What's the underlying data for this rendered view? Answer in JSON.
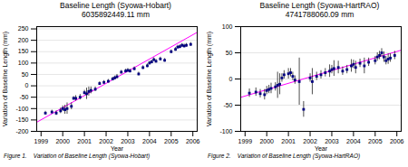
{
  "chart_data": [
    {
      "type": "scatter",
      "title": "Baseline Length (Syowa-Hobart)",
      "subtitle": "6035892449.11 mm",
      "caption": "Figure 1.    Variation of Baseline Length (Syowa-Hobart)",
      "xlabel": "Year",
      "ylabel": "Variation of Baseline Length (mm)",
      "x": [
        1999.2,
        1999.5,
        1999.7,
        1999.9,
        2000.0,
        2000.1,
        2000.2,
        2000.4,
        2000.5,
        2000.6,
        2000.8,
        2001.0,
        2001.1,
        2001.2,
        2001.3,
        2001.5,
        2001.7,
        2001.9,
        2002.1,
        2002.3,
        2002.4,
        2002.5,
        2002.7,
        2002.9,
        2003.0,
        2003.1,
        2003.3,
        2003.5,
        2003.7,
        2003.9,
        2004.0,
        2004.1,
        2004.2,
        2004.3,
        2004.5,
        2004.7,
        2005.0,
        2005.2,
        2005.3,
        2005.4,
        2005.5,
        2005.6,
        2005.7,
        2005.9
      ],
      "values": [
        -120,
        -115,
        -120,
        -110,
        -100,
        -105,
        -100,
        -90,
        -55,
        -55,
        -50,
        -30,
        -35,
        -25,
        -20,
        -15,
        10,
        15,
        20,
        30,
        35,
        40,
        60,
        65,
        68,
        65,
        75,
        52,
        80,
        88,
        100,
        105,
        115,
        108,
        118,
        112,
        150,
        160,
        170,
        172,
        178,
        175,
        178,
        182
      ],
      "yerr": [
        8,
        8,
        10,
        12,
        12,
        20,
        25,
        15,
        8,
        12,
        12,
        10,
        25,
        20,
        15,
        10,
        8,
        8,
        8,
        8,
        8,
        10,
        8,
        8,
        8,
        8,
        8,
        8,
        8,
        8,
        8,
        8,
        8,
        8,
        8,
        8,
        8,
        8,
        8,
        8,
        8,
        8,
        8,
        8
      ],
      "color": "#000080",
      "marker": "square",
      "trend": {
        "x": [
          1998.8,
          2006.2
        ],
        "values": [
          -160,
          235
        ],
        "color": "#ff00ff"
      },
      "xlim": [
        1998.8,
        2006.2
      ],
      "ylim": [
        -200,
        260
      ],
      "xticks": [
        1999,
        2000,
        2001,
        2002,
        2003,
        2004,
        2005,
        2006
      ],
      "yticks": [
        -200,
        -150,
        -100,
        -50,
        0,
        50,
        100,
        150,
        200,
        250
      ],
      "grid": true
    },
    {
      "type": "scatter",
      "title": "Baseline Length (Syowa-HartRAO)",
      "subtitle": "4741788060.09 mm",
      "caption": "Figure 2.    Variation of Baseline Length (Syowa-HartRAO)",
      "xlabel": "Year",
      "ylabel": "Variation of Baseline Length (mm)",
      "x": [
        1999.2,
        1999.5,
        1999.7,
        1999.9,
        2000.0,
        2000.1,
        2000.2,
        2000.4,
        2000.5,
        2000.6,
        2000.7,
        2000.8,
        2001.0,
        2001.1,
        2001.2,
        2001.3,
        2001.5,
        2001.7,
        2002.0,
        2002.1,
        2002.3,
        2002.5,
        2002.7,
        2002.9,
        2003.0,
        2003.1,
        2003.3,
        2003.5,
        2003.7,
        2003.9,
        2004.0,
        2004.1,
        2004.3,
        2004.5,
        2004.7,
        2005.0,
        2005.1,
        2005.2,
        2005.3,
        2005.4,
        2005.5,
        2005.6,
        2005.7,
        2005.9
      ],
      "values": [
        -27,
        -25,
        -28,
        -30,
        -22,
        -20,
        -18,
        -15,
        -12,
        -10,
        2,
        8,
        10,
        12,
        5,
        -2,
        -5,
        -58,
        2,
        -5,
        5,
        8,
        12,
        15,
        18,
        20,
        22,
        15,
        18,
        25,
        28,
        22,
        30,
        25,
        32,
        35,
        42,
        45,
        50,
        42,
        35,
        38,
        40,
        45
      ],
      "yerr": [
        8,
        8,
        8,
        10,
        8,
        8,
        10,
        8,
        25,
        20,
        8,
        8,
        10,
        8,
        8,
        8,
        45,
        15,
        8,
        25,
        8,
        8,
        8,
        12,
        8,
        15,
        12,
        8,
        8,
        12,
        8,
        12,
        8,
        15,
        8,
        8,
        8,
        8,
        8,
        10,
        8,
        10,
        8,
        8
      ],
      "color": "#000080",
      "marker": "square",
      "trend": {
        "x": [
          1998.8,
          2006.2
        ],
        "values": [
          -35,
          55
        ],
        "color": "#ff00ff"
      },
      "xlim": [
        1998.8,
        2006.2
      ],
      "ylim": [
        -100,
        100
      ],
      "xticks": [
        1999,
        2000,
        2001,
        2002,
        2003,
        2004,
        2005,
        2006
      ],
      "yticks": [
        -100,
        -50,
        0,
        50,
        100
      ],
      "grid": true
    }
  ]
}
